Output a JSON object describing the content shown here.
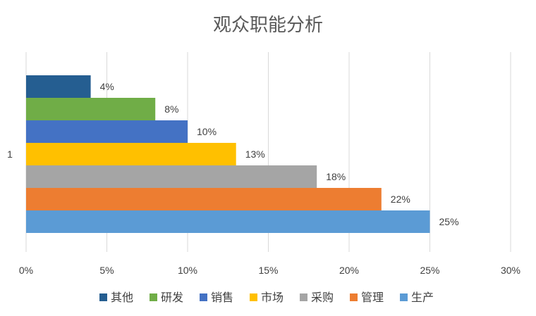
{
  "chart_data": {
    "type": "bar",
    "orientation": "horizontal",
    "title": "观众职能分析",
    "xlabel": "",
    "ylabel": "",
    "categories": [
      "1"
    ],
    "xlim": [
      0,
      0.3
    ],
    "x_ticks": [
      "0%",
      "5%",
      "10%",
      "15%",
      "20%",
      "25%",
      "30%"
    ],
    "grid": "vertical",
    "legend_position": "bottom",
    "series": [
      {
        "name": "其他",
        "values": [
          0.04
        ],
        "label": "4%",
        "color": "#255e91"
      },
      {
        "name": "研发",
        "values": [
          0.08
        ],
        "label": "8%",
        "color": "#70ad47"
      },
      {
        "name": "销售",
        "values": [
          0.1
        ],
        "label": "10%",
        "color": "#4472c4"
      },
      {
        "name": "市场",
        "values": [
          0.13
        ],
        "label": "13%",
        "color": "#ffc000"
      },
      {
        "name": "采购",
        "values": [
          0.18
        ],
        "label": "18%",
        "color": "#a5a5a5"
      },
      {
        "name": "管理",
        "values": [
          0.22
        ],
        "label": "22%",
        "color": "#ed7d31"
      },
      {
        "name": "生产",
        "values": [
          0.25
        ],
        "label": "25%",
        "color": "#5b9bd5"
      }
    ]
  }
}
